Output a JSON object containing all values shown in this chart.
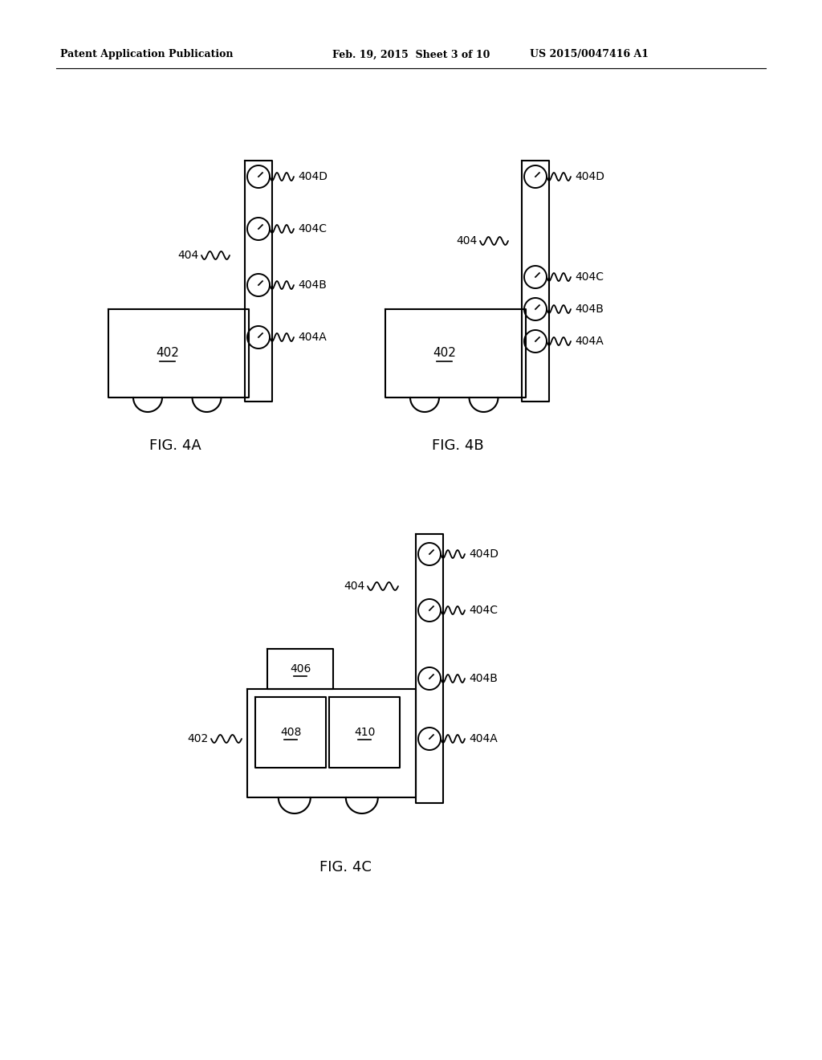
{
  "background_color": "#ffffff",
  "header_left": "Patent Application Publication",
  "header_center": "Feb. 19, 2015  Sheet 3 of 10",
  "header_right": "US 2015/0047416 A1",
  "fig4a_caption": "FIG. 4A",
  "fig4b_caption": "FIG. 4B",
  "fig4c_caption": "FIG. 4C",
  "label_402": "402",
  "label_404": "404",
  "label_404A": "404A",
  "label_404B": "404B",
  "label_404C": "404C",
  "label_404D": "404D",
  "label_406": "406",
  "label_408": "408",
  "label_410": "410"
}
